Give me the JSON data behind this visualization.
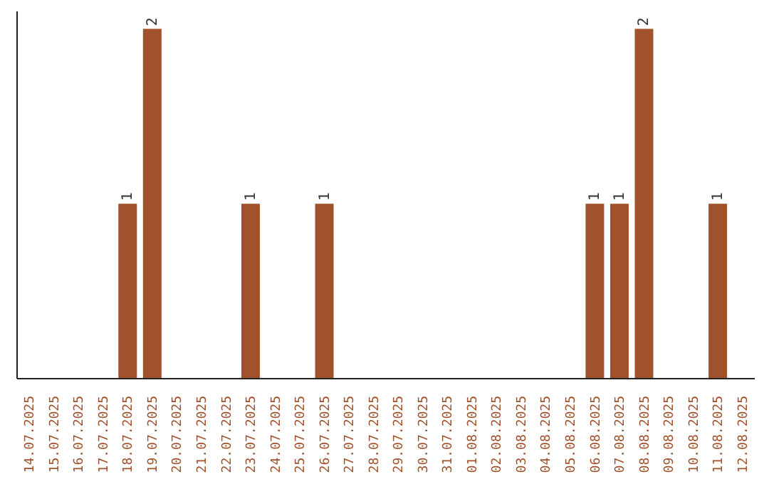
{
  "chart_data": {
    "type": "bar",
    "categories": [
      "14.07.2025",
      "15.07.2025",
      "16.07.2025",
      "17.07.2025",
      "18.07.2025",
      "19.07.2025",
      "20.07.2025",
      "21.07.2025",
      "22.07.2025",
      "23.07.2025",
      "24.07.2025",
      "25.07.2025",
      "26.07.2025",
      "27.07.2025",
      "28.07.2025",
      "29.07.2025",
      "30.07.2025",
      "31.07.2025",
      "01.08.2025",
      "02.08.2025",
      "03.08.2025",
      "04.08.2025",
      "05.08.2025",
      "06.08.2025",
      "07.08.2025",
      "08.08.2025",
      "09.08.2025",
      "10.08.2025",
      "11.08.2025",
      "12.08.2025"
    ],
    "values": [
      0,
      0,
      0,
      0,
      1,
      2,
      0,
      0,
      0,
      1,
      0,
      0,
      1,
      0,
      0,
      0,
      0,
      0,
      0,
      0,
      0,
      0,
      0,
      1,
      1,
      2,
      0,
      0,
      1,
      0
    ],
    "value_labels": [
      null,
      null,
      null,
      null,
      "1",
      "2",
      null,
      null,
      null,
      "1",
      null,
      null,
      "1",
      null,
      null,
      null,
      null,
      null,
      null,
      null,
      null,
      null,
      null,
      "1",
      "1",
      "2",
      null,
      null,
      "1",
      null
    ],
    "color": "#a0522d",
    "tick_labels": "x"
  }
}
